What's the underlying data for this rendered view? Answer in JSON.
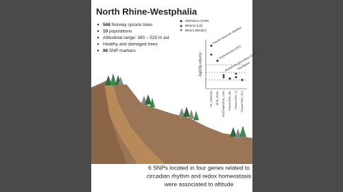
{
  "header": {
    "title": "North Rhine-Westphalia"
  },
  "bullets": [
    {
      "bold": "568",
      "text": "Norway spruce trees"
    },
    {
      "bold": "10",
      "text": "populations"
    },
    {
      "bold": "",
      "text": "Altitudinal range: 390 – 525 m asl"
    },
    {
      "bold": "",
      "text": "Healthy and damaged trees"
    },
    {
      "bold": "96",
      "text": "SNP markers"
    }
  ],
  "inset": {
    "legend": [
      "SNPassoc (FDR)",
      "Bhmm2 (LD)",
      "Bhmm (MCMC)"
    ],
    "y_label": "-log10(p-values)",
    "annotations": [
      "Pseudo-response regulator",
      "Cryptochrome (CRY)",
      "Glutathione peroxidase (GPX)",
      "Thioredoxin"
    ],
    "x_labels": [
      "PA_10285180",
      "MYB_39481",
      "GDS/TIMELESS_1334",
      "Pasma7993_382",
      "Pasma7993_10",
      "Pasma7993_1514"
    ]
  },
  "caption": [
    "6 SNPs located in four genes related to",
    "circadian rhythm and redox homeostasis",
    "were associated to altitude"
  ]
}
